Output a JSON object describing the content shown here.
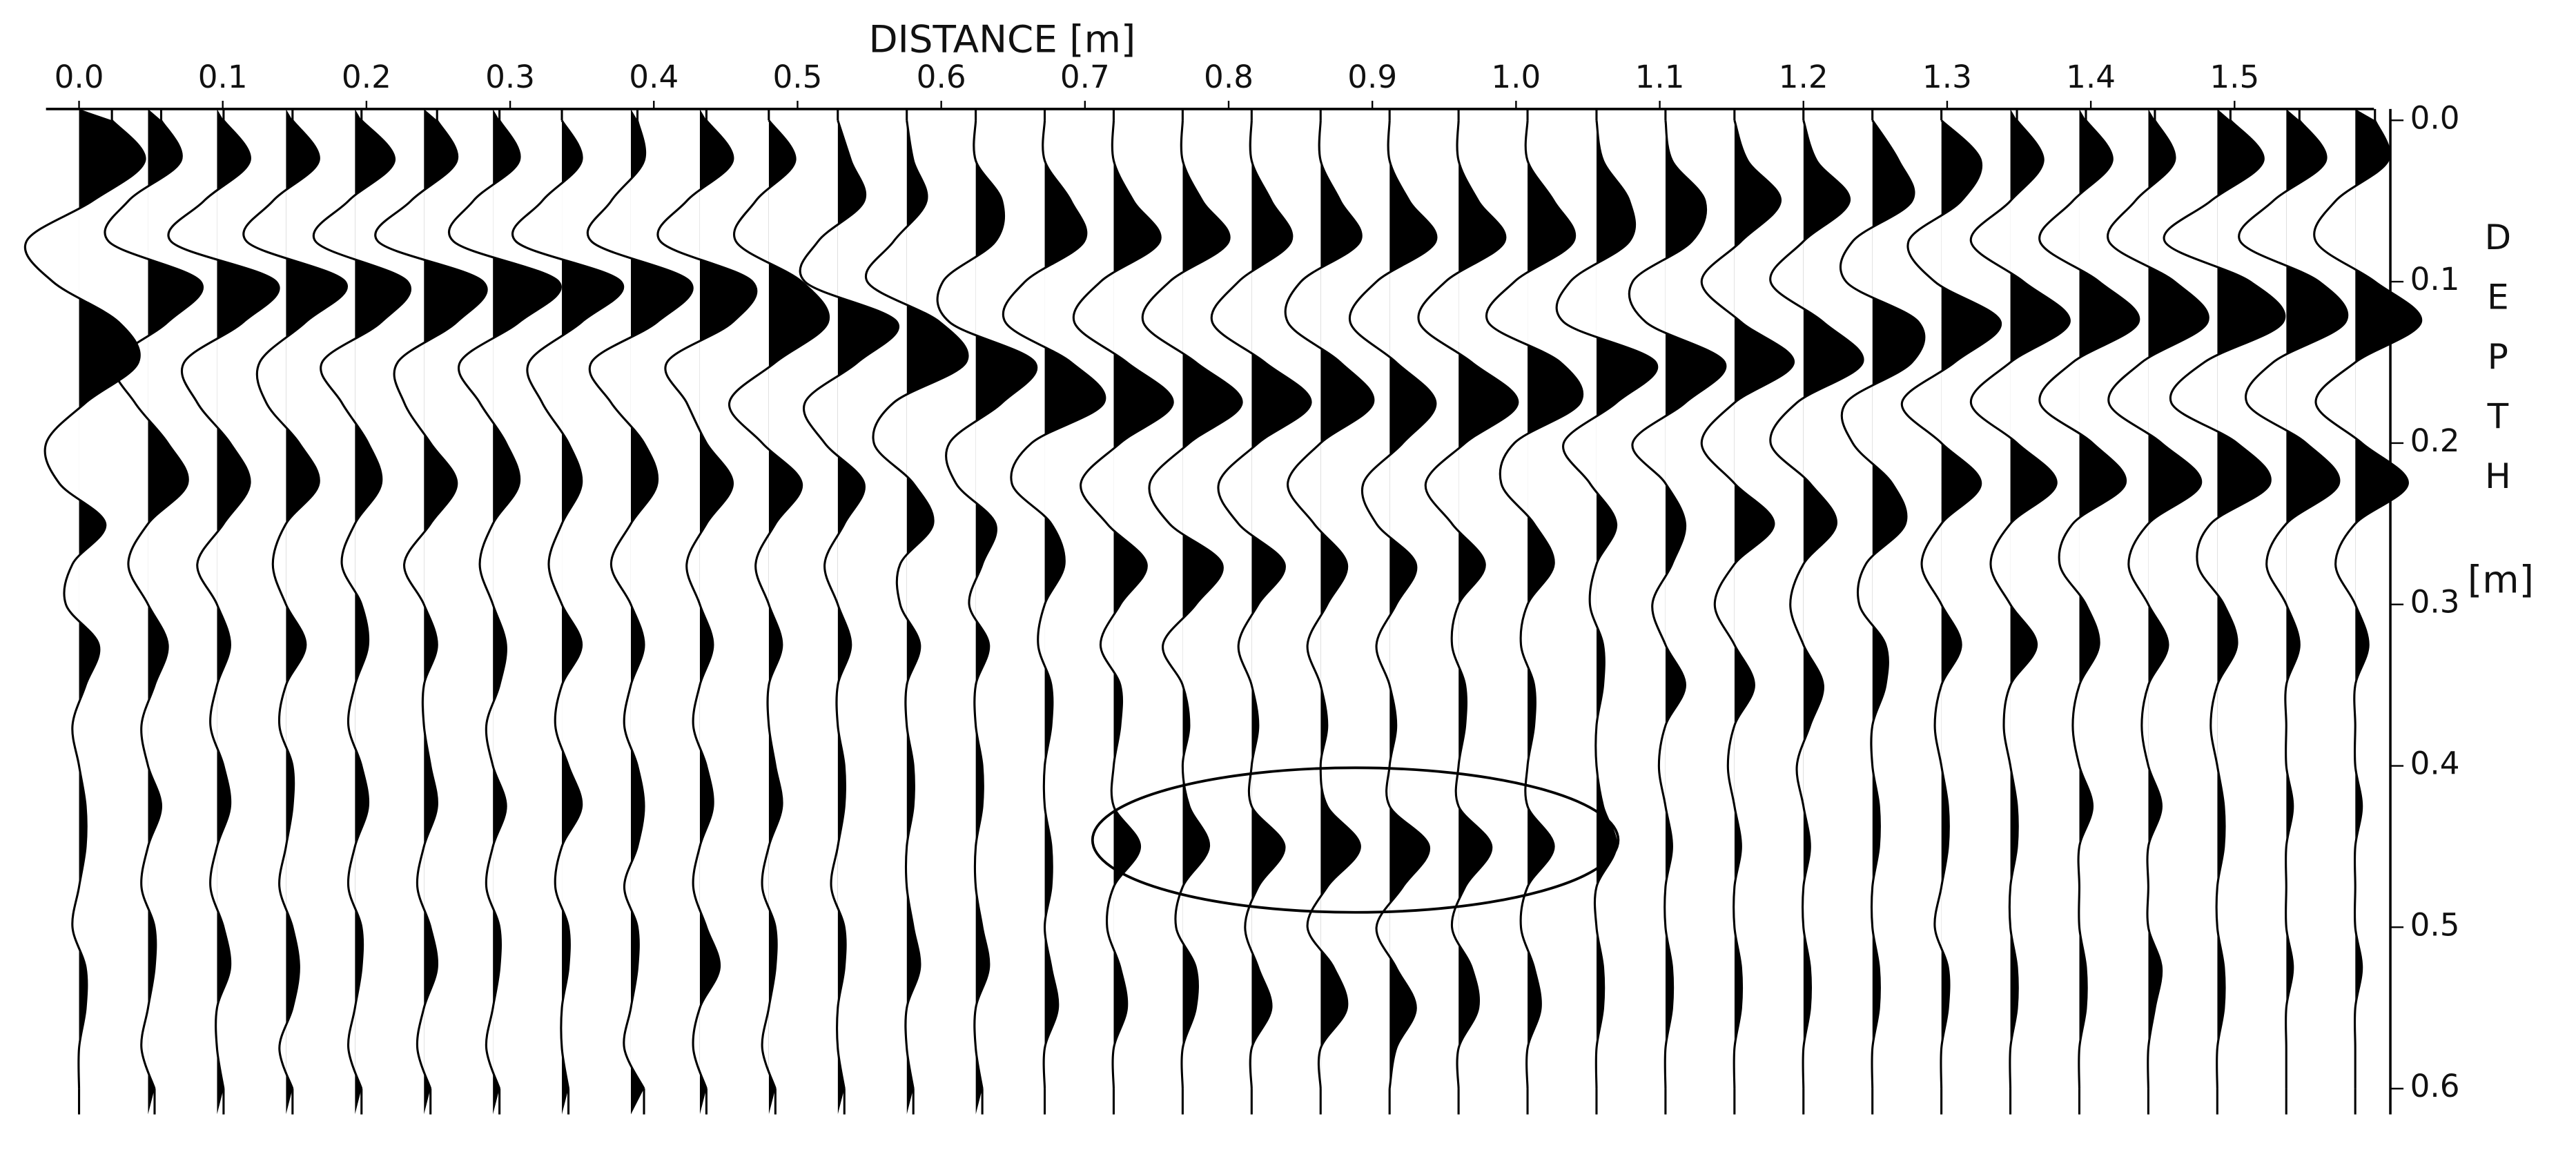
{
  "chart_data": {
    "type": "wiggle",
    "title": "DISTANCE [m]",
    "y_label": "DEPTH",
    "y_unit": "[m]",
    "xlim": [
      -0.023,
      1.597
    ],
    "xticks": [
      {
        "value": 0,
        "label": "0.0"
      },
      0.1,
      0.2,
      0.3,
      0.4,
      0.5,
      0.6,
      0.7,
      0.8,
      0.9,
      {
        "value": 1,
        "label": "1.0"
      },
      1.1,
      1.2,
      1.3,
      1.4,
      1.5
    ],
    "ylim": [
      -0.007,
      0.616
    ],
    "yticks": [
      {
        "value": 0,
        "label": "0.0"
      },
      0.1,
      0.2,
      0.3,
      0.4,
      0.5,
      0.6
    ],
    "color": "#000000",
    "x": [
      0,
      0.048,
      0.096,
      0.144,
      0.192,
      0.24,
      0.288,
      0.336,
      0.384,
      0.432,
      0.48,
      0.528,
      0.576,
      0.624,
      0.672,
      0.72,
      0.768,
      0.816,
      0.864,
      0.912,
      0.96,
      1.008,
      1.056,
      1.104,
      1.152,
      1.2,
      1.248,
      1.296,
      1.344,
      1.392,
      1.44,
      1.488,
      1.536,
      1.584
    ],
    "depths": [
      0,
      0.025,
      0.05,
      0.075,
      0.1,
      0.125,
      0.15,
      0.175,
      0.2,
      0.225,
      0.25,
      0.275,
      0.3,
      0.325,
      0.35,
      0.375,
      0.4,
      0.425,
      0.45,
      0.475,
      0.5,
      0.525,
      0.55,
      0.575,
      0.6
    ],
    "traces": [
      [
        0.5,
        1.0,
        0.2,
        -0.8,
        -0.4,
        0.6,
        0.9,
        0.1,
        -0.5,
        -0.3,
        0.4,
        -0.1,
        -0.2,
        0.3,
        0.1,
        -0.1,
        0,
        0.1,
        0.1,
        0,
        -0.1,
        0.1,
        0.1,
        0,
        0
      ],
      [
        0.2,
        0.5,
        -0.3,
        -0.6,
        0.8,
        0.3,
        -0.5,
        -0.2,
        0.3,
        0.6,
        0,
        -0.3,
        0,
        0.3,
        0.1,
        -0.1,
        0,
        0.2,
        0,
        -0.1,
        0.1,
        0.1,
        0,
        -0.1,
        0.1
      ],
      [
        0.1,
        0.5,
        -0.2,
        -0.7,
        0.9,
        0.4,
        -0.5,
        -0.3,
        0.2,
        0.5,
        0.1,
        -0.3,
        0,
        0.2,
        0,
        -0.1,
        0.1,
        0.2,
        0,
        -0.1,
        0.1,
        0.2,
        0,
        0,
        0.1
      ],
      [
        0.1,
        0.5,
        -0.2,
        -0.6,
        0.9,
        0.3,
        -0.4,
        -0.3,
        0.2,
        0.5,
        0,
        -0.2,
        0,
        0.3,
        0,
        -0.1,
        0.1,
        0.1,
        0,
        -0.1,
        0.1,
        0.2,
        0.1,
        -0.1,
        0.1
      ],
      [
        0.1,
        0.6,
        -0.1,
        -0.6,
        0.8,
        0.4,
        -0.5,
        -0.2,
        0.2,
        0.4,
        0,
        -0.2,
        0.1,
        0.2,
        0,
        -0.1,
        0.1,
        0.2,
        0,
        -0.1,
        0.1,
        0.1,
        0,
        -0.1,
        0.1
      ],
      [
        0.2,
        0.5,
        -0.2,
        -0.7,
        0.9,
        0.5,
        -0.4,
        -0.3,
        0.1,
        0.5,
        0.1,
        -0.3,
        0,
        0.2,
        0,
        0,
        0.1,
        0.2,
        0,
        -0.1,
        0.1,
        0.2,
        0,
        -0.1,
        0.1
      ],
      [
        0.1,
        0.4,
        -0.3,
        -0.6,
        1.0,
        0.4,
        -0.5,
        -0.2,
        0.2,
        0.4,
        0,
        -0.2,
        0,
        0.2,
        0.1,
        -0.1,
        0,
        0.2,
        0,
        -0.1,
        0.1,
        0.1,
        0,
        -0.1,
        0.1
      ],
      [
        0,
        0.3,
        -0.3,
        -0.7,
        0.9,
        0.3,
        -0.5,
        -0.3,
        0.1,
        0.3,
        0,
        -0.2,
        0,
        0.3,
        0,
        -0.1,
        0.1,
        0.3,
        0,
        -0.1,
        0.1,
        0.1,
        0,
        0,
        0.1
      ],
      [
        0.1,
        0.2,
        -0.3,
        -0.6,
        0.9,
        0.4,
        -0.6,
        -0.3,
        0.2,
        0.4,
        0,
        -0.3,
        0,
        0.2,
        0,
        -0.1,
        0.1,
        0.2,
        0.1,
        -0.1,
        0.1,
        0.1,
        0,
        -0.1,
        0.2
      ],
      [
        0.1,
        0.5,
        -0.2,
        -0.6,
        0.8,
        0.5,
        -0.5,
        -0.2,
        0.1,
        0.5,
        0.1,
        -0.2,
        0,
        0.2,
        0,
        -0.1,
        0.1,
        0.2,
        0,
        -0.1,
        0.1,
        0.3,
        0,
        -0.1,
        0.1
      ],
      [
        0,
        0.4,
        -0.2,
        -0.5,
        0.5,
        0.9,
        0.1,
        -0.6,
        -0.1,
        0.5,
        0.1,
        -0.2,
        0,
        0.2,
        0,
        0,
        0.1,
        0.2,
        0,
        -0.1,
        0.1,
        0.1,
        0,
        -0.1,
        0.1
      ],
      [
        0,
        0.2,
        0.4,
        -0.3,
        -0.5,
        0.9,
        0.3,
        -0.5,
        -0.2,
        0.4,
        0.1,
        -0.2,
        0,
        0.2,
        0,
        0,
        0.1,
        0.1,
        0,
        -0.1,
        0.1,
        0.1,
        0,
        0,
        0.1
      ],
      [
        0,
        0.1,
        0.3,
        -0.2,
        -0.6,
        0.5,
        0.9,
        -0.2,
        -0.5,
        0.1,
        0.4,
        -0.1,
        -0.1,
        0.2,
        0,
        0,
        0.1,
        0.1,
        0,
        0,
        0.1,
        0.2,
        0,
        0,
        0.1
      ],
      [
        0,
        0,
        0.4,
        0.3,
        -0.5,
        -0.4,
        0.9,
        0.4,
        -0.4,
        -0.3,
        0.3,
        0.1,
        -0.1,
        0.2,
        0,
        0,
        0.1,
        0.1,
        0,
        0,
        0.1,
        0.2,
        0,
        0,
        0.1
      ],
      [
        0,
        0,
        0.4,
        0.6,
        -0.3,
        -0.6,
        0.4,
        0.9,
        -0.2,
        -0.5,
        0.1,
        0.3,
        0,
        -0.1,
        0.1,
        0.1,
        0,
        0,
        0.1,
        0.1,
        0,
        0.1,
        0.2,
        0,
        0
      ],
      [
        0,
        0,
        0.3,
        0.7,
        -0.2,
        -0.6,
        0.2,
        0.9,
        0.1,
        -0.5,
        -0.1,
        0.5,
        0.1,
        -0.2,
        0.1,
        0.1,
        0,
        0,
        0.4,
        0,
        -0.1,
        0.1,
        0.2,
        0,
        0
      ],
      [
        0,
        0,
        0.3,
        0.7,
        -0.2,
        -0.6,
        0.2,
        0.9,
        0.1,
        -0.5,
        -0.2,
        0.6,
        0.2,
        -0.3,
        0,
        0.1,
        0,
        0.1,
        0.4,
        0,
        -0.1,
        0.2,
        0.2,
        0,
        0
      ],
      [
        0,
        0,
        0.3,
        0.6,
        -0.2,
        -0.6,
        0.2,
        0.9,
        0.1,
        -0.5,
        -0.2,
        0.5,
        0.1,
        -0.2,
        0,
        0.1,
        0,
        0,
        0.5,
        0.1,
        -0.1,
        0.1,
        0.3,
        0,
        0
      ],
      [
        0,
        0,
        0.3,
        0.6,
        -0.3,
        -0.5,
        0.3,
        0.8,
        0,
        -0.5,
        -0.1,
        0.4,
        0.1,
        -0.2,
        0,
        0.1,
        0,
        0.1,
        0.6,
        0.1,
        -0.2,
        0.2,
        0.4,
        0,
        0
      ],
      [
        0,
        0,
        0.3,
        0.7,
        -0.2,
        -0.6,
        0.1,
        0.7,
        0.2,
        -0.4,
        -0.2,
        0.4,
        0.1,
        -0.2,
        0,
        0.1,
        0,
        0,
        0.6,
        0.2,
        -0.2,
        0.1,
        0.4,
        0.1,
        0
      ],
      [
        0,
        0,
        0.3,
        0.7,
        -0.2,
        -0.6,
        0.2,
        0.9,
        0.1,
        -0.5,
        -0.1,
        0.4,
        0,
        -0.1,
        0.1,
        0.1,
        0,
        0,
        0.5,
        0.1,
        -0.1,
        0.2,
        0.3,
        0,
        0
      ],
      [
        0,
        0,
        0.4,
        0.7,
        -0.2,
        -0.6,
        0.5,
        0.8,
        -0.2,
        -0.4,
        0.1,
        0.4,
        0,
        -0.1,
        0.1,
        0.1,
        0,
        0,
        0.4,
        0,
        -0.1,
        0.1,
        0.2,
        0,
        0
      ],
      [
        0,
        0.1,
        0.5,
        0.5,
        -0.4,
        -0.5,
        0.9,
        0.3,
        -0.5,
        -0.1,
        0.3,
        0,
        -0.1,
        0.1,
        0.1,
        0,
        0,
        0.1,
        0.3,
        0,
        0,
        0.1,
        0.1,
        0,
        0
      ],
      [
        0,
        0.1,
        0.6,
        0.4,
        -0.5,
        -0.3,
        0.9,
        0.3,
        -0.5,
        0,
        0.3,
        0.1,
        -0.2,
        0,
        0.3,
        0,
        -0.1,
        0,
        0.1,
        0,
        0,
        0.1,
        0.1,
        0,
        0
      ],
      [
        0,
        0.2,
        0.7,
        0.1,
        -0.5,
        0.1,
        0.9,
        0,
        -0.5,
        0,
        0.6,
        0,
        -0.3,
        0,
        0.3,
        0,
        -0.1,
        0,
        0.1,
        0,
        0,
        0.1,
        0.1,
        0,
        0
      ],
      [
        0,
        0.2,
        0.7,
        0,
        -0.5,
        0.3,
        0.9,
        -0.1,
        -0.5,
        0.1,
        0.5,
        0,
        -0.2,
        0,
        0.3,
        0.1,
        -0.1,
        0,
        0.1,
        0,
        0,
        0.1,
        0.1,
        0,
        0
      ],
      [
        0,
        0.4,
        0.6,
        -0.3,
        -0.4,
        0.7,
        0.6,
        -0.4,
        -0.3,
        0.3,
        0.5,
        -0.1,
        -0.2,
        0.2,
        0.2,
        0,
        0,
        0.1,
        0.1,
        0,
        0,
        0.1,
        0.1,
        0,
        0
      ],
      [
        0,
        0.6,
        0.3,
        -0.5,
        -0.1,
        0.9,
        0.2,
        -0.6,
        0,
        0.6,
        0,
        -0.3,
        0,
        0.3,
        0,
        -0.1,
        0,
        0.1,
        0.1,
        0,
        -0.1,
        0.1,
        0.1,
        0,
        0
      ],
      [
        0.1,
        0.5,
        0,
        -0.6,
        0.2,
        0.9,
        0,
        -0.6,
        0.1,
        0.7,
        0,
        -0.3,
        0,
        0.4,
        0,
        -0.1,
        0,
        0.1,
        0.1,
        0,
        0,
        0.1,
        0.1,
        0,
        0
      ],
      [
        0.1,
        0.5,
        -0.1,
        -0.6,
        0.3,
        0.9,
        -0.1,
        -0.6,
        0.2,
        0.7,
        -0.1,
        -0.3,
        0.1,
        0.3,
        0,
        -0.1,
        0,
        0.2,
        0,
        0,
        0,
        0.1,
        0.1,
        0,
        0
      ],
      [
        0.1,
        0.4,
        -0.2,
        -0.6,
        0.4,
        0.9,
        -0.1,
        -0.6,
        0.2,
        0.8,
        0,
        -0.3,
        0,
        0.3,
        0,
        -0.1,
        0,
        0.2,
        0,
        0,
        0,
        0.2,
        0.1,
        0,
        0
      ],
      [
        0.2,
        0.7,
        -0.1,
        -0.8,
        0.5,
        1.0,
        -0.2,
        -0.7,
        0.3,
        0.8,
        -0.1,
        -0.3,
        0.1,
        0.3,
        0,
        -0.1,
        0,
        0.1,
        0.1,
        0,
        0,
        0.1,
        0.1,
        0,
        0
      ],
      [
        0.2,
        0.6,
        -0.2,
        -0.7,
        0.5,
        0.9,
        -0.2,
        -0.6,
        0.3,
        0.8,
        0,
        -0.3,
        0,
        0.2,
        0,
        0,
        0,
        0.1,
        0,
        0,
        0,
        0.1,
        0,
        0,
        0
      ],
      [
        0.3,
        0.5,
        -0.3,
        -0.6,
        0.3,
        1.0,
        0,
        -0.6,
        0.1,
        0.8,
        0,
        -0.3,
        0,
        0.2,
        0,
        0,
        0,
        0.1,
        0,
        0,
        0,
        0.1,
        0,
        0,
        0
      ]
    ]
  }
}
